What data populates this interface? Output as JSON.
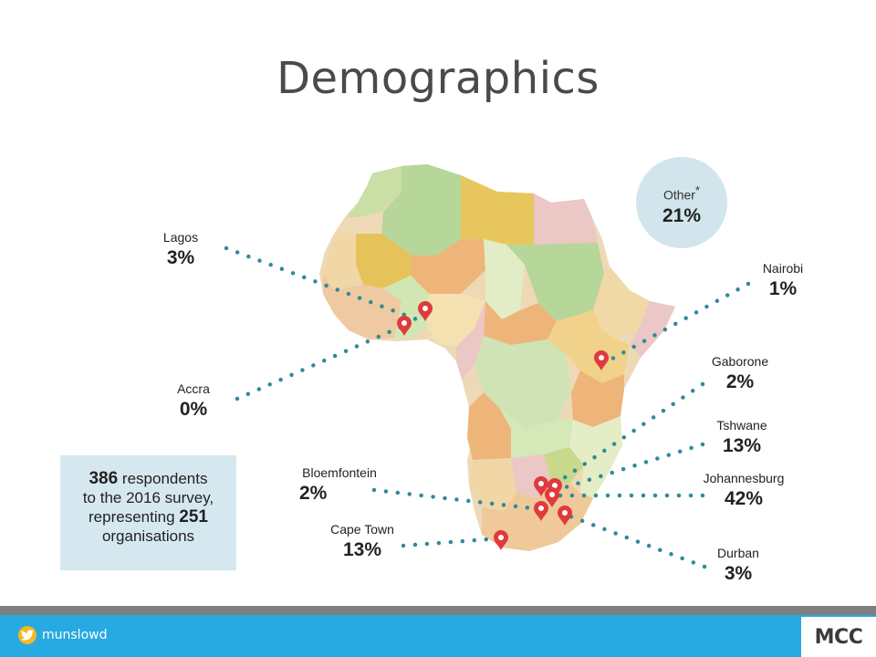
{
  "slide": {
    "title": "Demographics"
  },
  "cities": [
    {
      "id": "lagos",
      "name": "Lagos",
      "percent": "3%"
    },
    {
      "id": "accra",
      "name": "Accra",
      "percent": "0%"
    },
    {
      "id": "nairobi",
      "name": "Nairobi",
      "percent": "1%"
    },
    {
      "id": "gaborone",
      "name": "Gaborone",
      "percent": "2%"
    },
    {
      "id": "tshwane",
      "name": "Tshwane",
      "percent": "13%"
    },
    {
      "id": "johannesburg",
      "name": "Johannesburg",
      "percent": "42%"
    },
    {
      "id": "bloemfontein",
      "name": "Bloemfontein",
      "percent": "2%"
    },
    {
      "id": "cape-town",
      "name": "Cape Town",
      "percent": "13%"
    },
    {
      "id": "durban",
      "name": "Durban",
      "percent": "3%"
    }
  ],
  "other": {
    "name": "Other",
    "asterisk": "*",
    "percent": "21%"
  },
  "summary": {
    "respondents": "386",
    "line1_suffix": "respondents",
    "line2": "to the 2016 survey,",
    "line3_prefix": "representing",
    "organisations": "251",
    "line4": "organisations"
  },
  "footer": {
    "handle": "munslowd",
    "handle_icon": "twitter-icon",
    "logo": "MCC"
  },
  "colors": {
    "leader_dots": "#2e8b99",
    "pin": "#e0393e",
    "footer_blue": "#27a9e1",
    "footer_gray": "#7f7f7f",
    "other_circle": "#d2e5ec",
    "info_box": "#d6e8ef"
  }
}
